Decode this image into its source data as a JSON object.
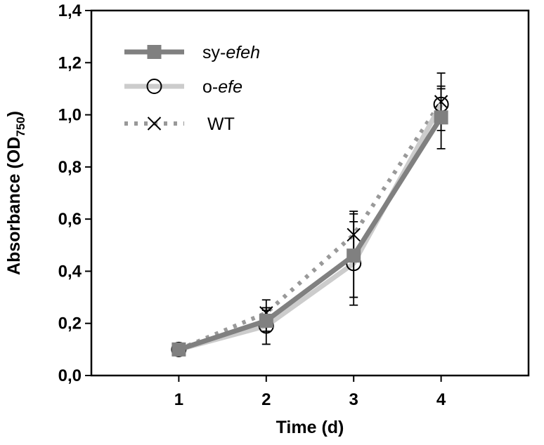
{
  "chart_data": {
    "type": "line",
    "title": "",
    "xlabel": "Time (d)",
    "ylabel_main": "Absorbance (OD",
    "ylabel_sub": "750",
    "ylabel_close": ")",
    "x": [
      1,
      2,
      3,
      4
    ],
    "x_tick_labels": [
      "1",
      "2",
      "3",
      "4"
    ],
    "xlim": [
      0,
      5
    ],
    "ylim": [
      0,
      1.4
    ],
    "y_ticks": [
      0,
      0.2,
      0.4,
      0.6,
      0.8,
      1.0,
      1.2,
      1.4
    ],
    "y_tick_labels": [
      "0,0",
      "0,2",
      "0,4",
      "0,6",
      "0,8",
      "1,0",
      "1,2",
      "1,4"
    ],
    "grid": false,
    "legend_position": "top-left",
    "series": [
      {
        "name": "WT",
        "legend_prefix": "",
        "legend_italic": "",
        "legend_plain": "WT",
        "values": [
          0.1,
          0.24,
          0.54,
          1.05
        ],
        "errors": [
          0.01,
          0.05,
          0.09,
          0.11
        ],
        "color": "#999999",
        "line_style": "dotted",
        "marker": "x"
      },
      {
        "name": "o-efe",
        "legend_prefix": "o-",
        "legend_italic": "efe",
        "legend_plain": "",
        "values": [
          0.1,
          0.19,
          0.43,
          1.04
        ],
        "errors": [
          0.01,
          0.07,
          0.16,
          0.06
        ],
        "color": "#cccccc",
        "line_style": "solid",
        "marker": "circle"
      },
      {
        "name": "sy-efeh",
        "legend_prefix": "sy-",
        "legend_italic": "efeh",
        "legend_plain": "",
        "values": [
          0.1,
          0.21,
          0.46,
          0.99
        ],
        "errors": [
          0.01,
          0.04,
          0.16,
          0.12
        ],
        "color": "#808080",
        "line_style": "solid",
        "marker": "square"
      }
    ],
    "legend_order": [
      "sy-efeh",
      "o-efe",
      "WT"
    ]
  }
}
